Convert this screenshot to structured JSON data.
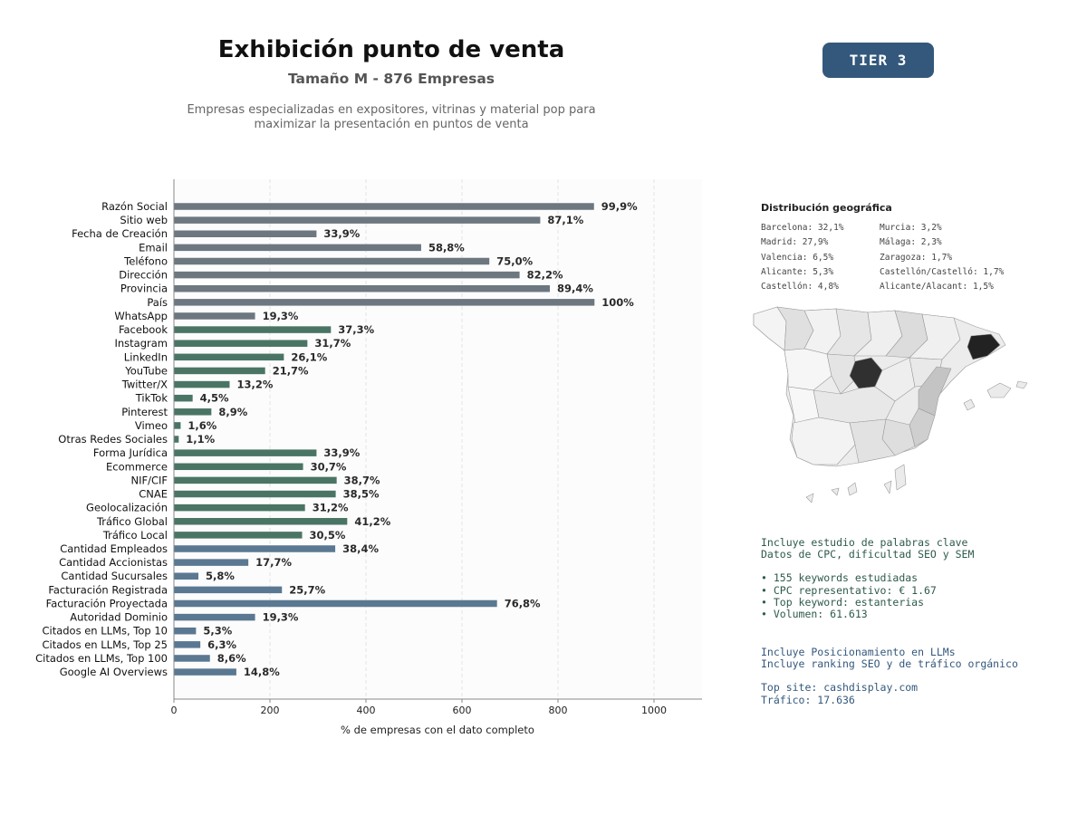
{
  "header": {
    "title": "Exhibición punto de venta",
    "subtitle": "Tamaño M - 876 Empresas",
    "description_line1": "Empresas especializadas en expositores, vitrinas y material pop para",
    "description_line2": "maximizar la presentación en puntos de venta",
    "tier_badge": "TIER 3"
  },
  "colors": {
    "gray": "#6d7780",
    "green": "#4a7565",
    "blue": "#5a7891",
    "badge": "#33587c"
  },
  "chart_data": {
    "type": "bar",
    "orientation": "horizontal",
    "xlabel": "% de empresas con el dato completo",
    "xlim": [
      0,
      1100
    ],
    "xticks": [
      0,
      200,
      400,
      600,
      800,
      1000
    ],
    "grid": "vertical dashed",
    "categories": [
      "Razón Social",
      "Sitio web",
      "Fecha de Creación",
      "Email",
      "Teléfono",
      "Dirección",
      "Provincia",
      "País",
      "WhatsApp",
      "Facebook",
      "Instagram",
      "LinkedIn",
      "YouTube",
      "Twitter/X",
      "TikTok",
      "Pinterest",
      "Vimeo",
      "Otras Redes Sociales",
      "Forma Jurídica",
      "Ecommerce",
      "NIF/CIF",
      "CNAE",
      "Geolocalización",
      "Tráfico Global",
      "Tráfico Local",
      "Cantidad Empleados",
      "Cantidad Accionistas",
      "Cantidad Sucursales",
      "Facturación Registrada",
      "Facturación Proyectada",
      "Autoridad Dominio",
      "Citados en LLMs, Top 10",
      "Citados en LLMs, Top 25",
      "Citados en LLMs, Top 100",
      "Google AI Overviews"
    ],
    "values": [
      875,
      763,
      297,
      515,
      657,
      720,
      783,
      876,
      169,
      327,
      278,
      229,
      190,
      116,
      39,
      78,
      14,
      10,
      297,
      269,
      339,
      337,
      273,
      361,
      267,
      336,
      155,
      51,
      225,
      673,
      169,
      46,
      55,
      75,
      130
    ],
    "labels": [
      "99,9%",
      "87,1%",
      "33,9%",
      "58,8%",
      "75,0%",
      "82,2%",
      "89,4%",
      "100%",
      "19,3%",
      "37,3%",
      "31,7%",
      "26,1%",
      "21,7%",
      "13,2%",
      "4,5%",
      "8,9%",
      "1,6%",
      "1,1%",
      "33,9%",
      "30,7%",
      "38,7%",
      "38,5%",
      "31,2%",
      "41,2%",
      "30,5%",
      "38,4%",
      "17,7%",
      "5,8%",
      "25,7%",
      "76,8%",
      "19,3%",
      "5,3%",
      "6,3%",
      "8,6%",
      "14,8%"
    ],
    "groups": [
      "gray",
      "gray",
      "gray",
      "gray",
      "gray",
      "gray",
      "gray",
      "gray",
      "gray",
      "green",
      "green",
      "green",
      "green",
      "green",
      "green",
      "green",
      "green",
      "green",
      "green",
      "green",
      "green",
      "green",
      "green",
      "green",
      "green",
      "blue",
      "blue",
      "blue",
      "blue",
      "blue",
      "blue",
      "blue",
      "blue",
      "blue",
      "blue"
    ]
  },
  "geo": {
    "title": "Distribución geográfica",
    "col1": [
      "Barcelona: 32,1%",
      "Madrid: 27,9%",
      "Valencia: 6,5%",
      "Alicante: 5,3%",
      "Castellón: 4,8%"
    ],
    "col2": [
      "Murcia: 3,2%",
      "Málaga: 2,3%",
      "Zaragoza: 1,7%",
      "Castellón/Castelló: 1,7%",
      "Alicante/Alacant: 1,5%"
    ]
  },
  "keywords": {
    "line1": "Incluye estudio de palabras clave",
    "line2": "Datos de CPC, dificultad SEO y SEM",
    "bullet1": "• 155 keywords estudiadas",
    "bullet2": "• CPC representativo: € 1.67",
    "bullet3": "• Top keyword: estanterias",
    "bullet4": "• Volumen: 61.613"
  },
  "llm": {
    "line1": "Incluye Posicionamiento en LLMs",
    "line2": "Incluye ranking SEO y de tráfico orgánico",
    "top_site": "Top site: cashdisplay.com",
    "traffic": "Tráfico: 17.636"
  }
}
